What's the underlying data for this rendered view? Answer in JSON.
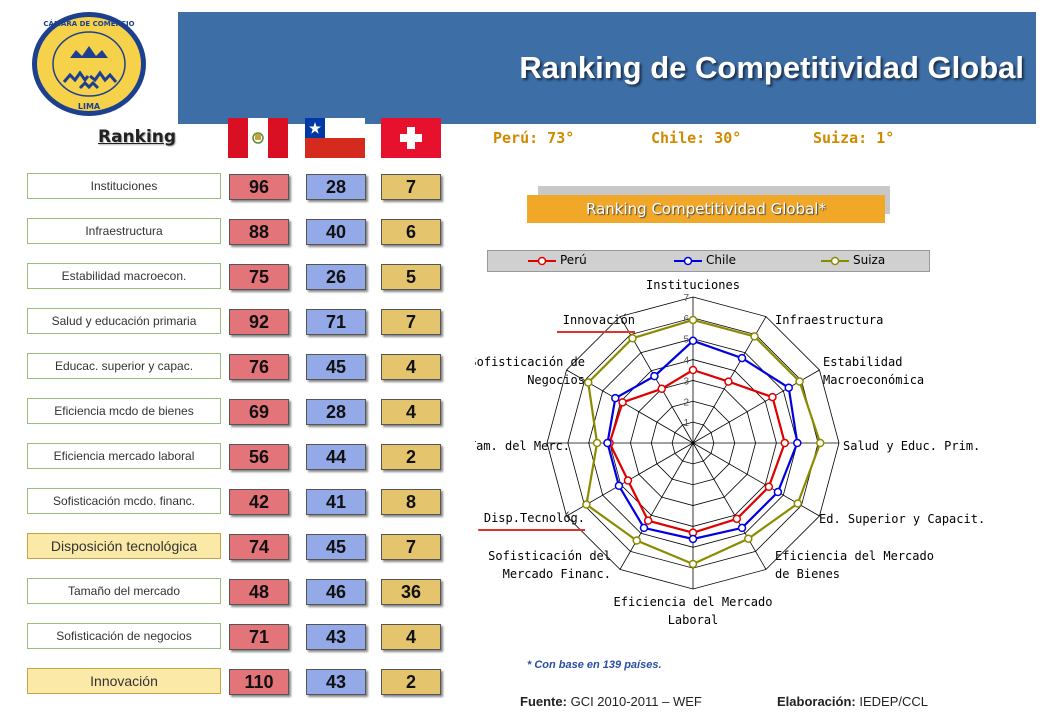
{
  "header": {
    "title": "Ranking de Competitividad Global"
  },
  "logo": {
    "name": "camara-de-comercio-lima-logo",
    "text_top": "CÁMARA DE COMERCIO",
    "text_bottom": "LIMA"
  },
  "table": {
    "ranking_label": "Ranking",
    "countries": [
      "Perú",
      "Chile",
      "Suiza"
    ],
    "rows": [
      {
        "label": "Instituciones",
        "peru": "96",
        "chile": "28",
        "suiza": "7",
        "highlight": false
      },
      {
        "label": "Infraestructura",
        "peru": "88",
        "chile": "40",
        "suiza": "6",
        "highlight": false
      },
      {
        "label": "Estabilidad macroecon.",
        "peru": "75",
        "chile": "26",
        "suiza": "5",
        "highlight": false
      },
      {
        "label": "Salud y educación primaria",
        "peru": "92",
        "chile": "71",
        "suiza": "7",
        "highlight": false
      },
      {
        "label": "Educac. superior y capac.",
        "peru": "76",
        "chile": "45",
        "suiza": "4",
        "highlight": false
      },
      {
        "label": "Eficiencia mcdo de bienes",
        "peru": "69",
        "chile": "28",
        "suiza": "4",
        "highlight": false
      },
      {
        "label": "Eficiencia mercado laboral",
        "peru": "56",
        "chile": "44",
        "suiza": "2",
        "highlight": false
      },
      {
        "label": "Sofisticación mcdo. financ.",
        "peru": "42",
        "chile": "41",
        "suiza": "8",
        "highlight": false
      },
      {
        "label": "Disposición tecnológica",
        "peru": "74",
        "chile": "45",
        "suiza": "7",
        "highlight": true
      },
      {
        "label": "Tamaño del mercado",
        "peru": "48",
        "chile": "46",
        "suiza": "36",
        "highlight": false
      },
      {
        "label": "Sofisticación de negocios",
        "peru": "71",
        "chile": "43",
        "suiza": "4",
        "highlight": false
      },
      {
        "label": "Innovación",
        "peru": "110",
        "chile": "43",
        "suiza": "2",
        "highlight": true
      }
    ]
  },
  "summary": {
    "peru": "Perú: 73°",
    "chile": "Chile: 30°",
    "suiza": "Suiza: 1°"
  },
  "colors": {
    "peru": "#e00000",
    "chile": "#0000e0",
    "suiza": "#8b8b00",
    "header": "#3d6ea5",
    "title_bg": "#f1a728"
  },
  "chart_data": {
    "type": "radar",
    "title": "Ranking Competitividad Global*",
    "axes": [
      "Instituciones",
      "Infraestructura",
      "Estabilidad\nMacroeconómica",
      "Salud y Educ. Prim.",
      "Ed. Superior y Capacit.",
      "Eficiencia del Mercado\nde Bienes",
      "Eficiencia del Mercado\nLaboral",
      "Sofisticación del\nMercado Financ.",
      "Disp.Tecnológ.",
      "Tam. del Merc.",
      "Sofisticación de\nNegocios",
      "Innovación"
    ],
    "rlim": [
      0,
      7
    ],
    "ticks": [
      "1",
      "2",
      "3",
      "4",
      "5",
      "6",
      "7"
    ],
    "series": [
      {
        "name": "Perú",
        "values": [
          3.5,
          3.4,
          4.4,
          4.4,
          4.2,
          4.2,
          4.3,
          4.3,
          3.6,
          4.0,
          3.9,
          3.0
        ]
      },
      {
        "name": "Chile",
        "values": [
          4.9,
          4.7,
          5.3,
          5.0,
          4.7,
          4.7,
          4.6,
          4.7,
          4.1,
          4.1,
          4.3,
          3.7
        ]
      },
      {
        "name": "Suiza",
        "values": [
          5.9,
          5.9,
          5.9,
          6.1,
          5.8,
          5.3,
          5.8,
          5.4,
          5.9,
          4.6,
          5.8,
          5.8
        ]
      }
    ],
    "legend_position": "top",
    "underlined_axes": [
      "Innovación",
      "Disp.Tecnológ."
    ]
  },
  "footnote": "* Con base en 139 países.",
  "source": {
    "label": "Fuente:",
    "value": "GCI 2010-2011 – WEF"
  },
  "elaboration": {
    "label": "Elaboración:",
    "value": "IEDEP/CCL"
  }
}
